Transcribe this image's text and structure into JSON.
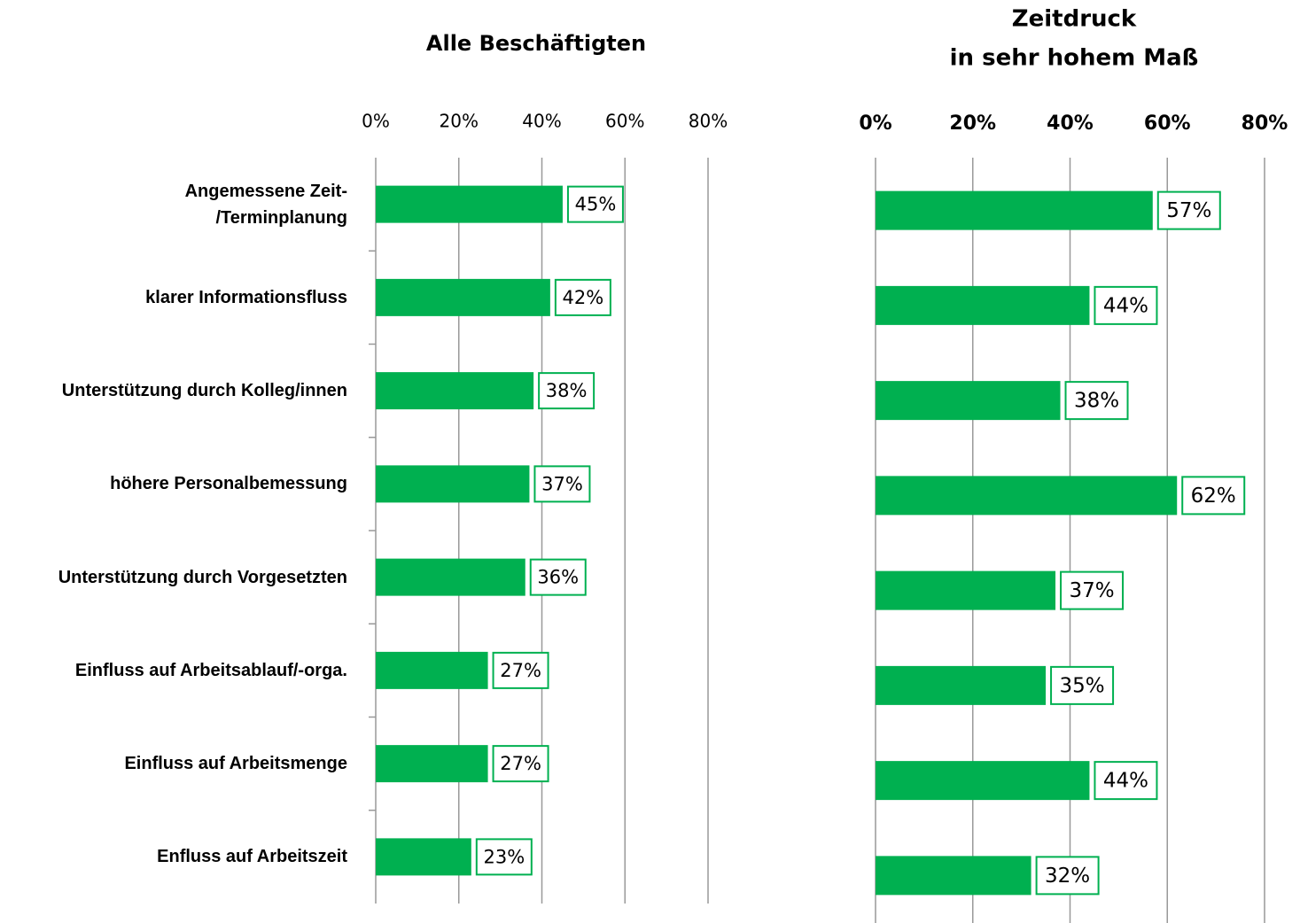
{
  "chart_data": [
    {
      "type": "bar",
      "orientation": "horizontal",
      "title": "Alle Beschäftigten",
      "categories": [
        "Angemessene Zeit-\n/Terminplanung",
        "klarer Informationsfluss",
        "Unterstützung durch Kolleg/innen",
        "höhere Personalbemessung",
        "Unterstützung durch Vorgesetzten",
        "Einfluss auf Arbeitsablauf/-orga.",
        "Einfluss auf Arbeitsmenge",
        "Enfluss auf Arbeitszeit"
      ],
      "values": [
        45,
        42,
        38,
        37,
        36,
        27,
        27,
        23
      ],
      "value_labels": [
        "45%",
        "42%",
        "38%",
        "37%",
        "36%",
        "27%",
        "27%",
        "23%"
      ],
      "color": "#00b050",
      "xlim": [
        0,
        80
      ],
      "xticks": [
        {
          "value": 0,
          "label": "0%"
        },
        {
          "value": 20,
          "label": "20%"
        },
        {
          "value": 40,
          "label": "40%"
        },
        {
          "value": 60,
          "label": "60%"
        },
        {
          "value": 80,
          "label": "80%"
        }
      ],
      "grid": true
    },
    {
      "type": "bar",
      "orientation": "horizontal",
      "title": [
        "Zeitdruck",
        "in sehr hohem Maß"
      ],
      "values": [
        57,
        44,
        38,
        62,
        37,
        35,
        44,
        32
      ],
      "value_labels": [
        "57%",
        "44%",
        "38%",
        "62%",
        "37%",
        "35%",
        "44%",
        "32%"
      ],
      "color": "#00b050",
      "xlim": [
        0,
        80
      ],
      "xticks": [
        {
          "value": 0,
          "label": "0%"
        },
        {
          "value": 20,
          "label": "20%"
        },
        {
          "value": 40,
          "label": "40%"
        },
        {
          "value": 60,
          "label": "60%"
        },
        {
          "value": 80,
          "label": "80%"
        }
      ],
      "grid": true
    }
  ]
}
